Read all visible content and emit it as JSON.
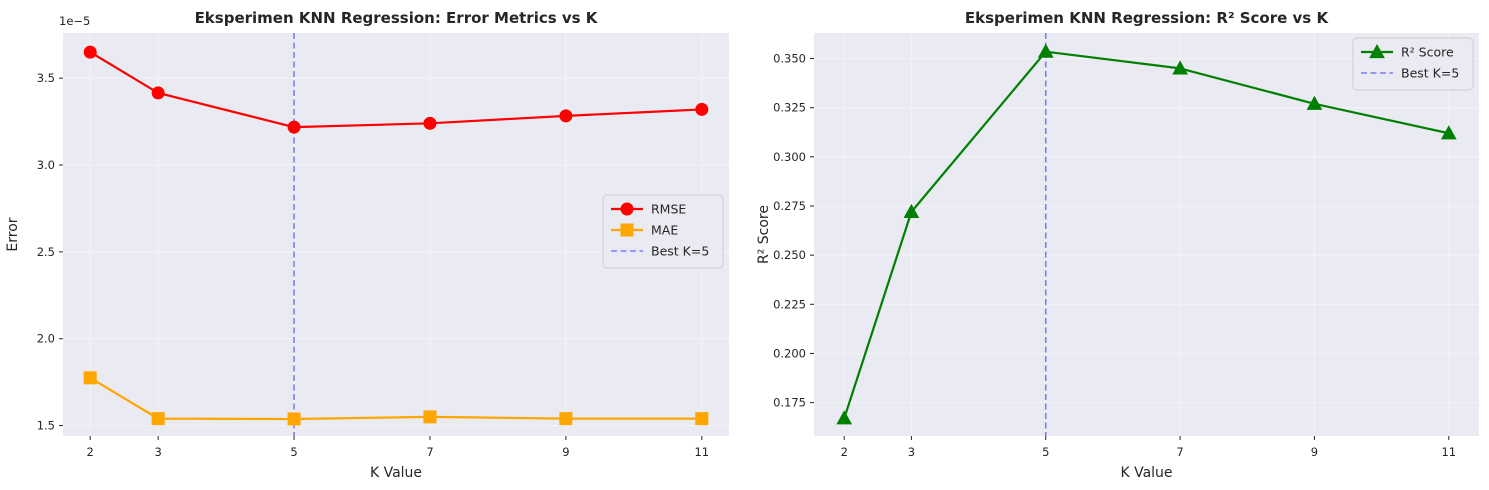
{
  "chart_data": [
    {
      "type": "line",
      "title": "Eksperimen KNN Regression: Error Metrics vs K",
      "xlabel": "K Value",
      "ylabel": "Error",
      "offset_label": "1e−5",
      "x": [
        2,
        3,
        5,
        7,
        9,
        11
      ],
      "xticks": [
        2,
        3,
        5,
        7,
        9,
        11
      ],
      "xlim": [
        1.6,
        11.4
      ],
      "ylim": [
        1.44,
        3.76
      ],
      "yticks": [
        1.5,
        2.0,
        2.5,
        3.0,
        3.5
      ],
      "ytick_labels": [
        "1.5",
        "2.0",
        "2.5",
        "3.0",
        "3.5"
      ],
      "grid": true,
      "legend_position": "center-right",
      "series": [
        {
          "name": "RMSE",
          "values": [
            3.65,
            3.415,
            3.218,
            3.24,
            3.283,
            3.32
          ],
          "color": "#ff0000",
          "marker": "circle"
        },
        {
          "name": "MAE",
          "values": [
            1.775,
            1.54,
            1.538,
            1.55,
            1.54,
            1.54
          ],
          "color": "#ffa500",
          "marker": "square"
        }
      ],
      "reference_line": {
        "name": "Best K=5",
        "x": 5,
        "color": "#6b6bf0",
        "style": "dashed"
      }
    },
    {
      "type": "line",
      "title": "Eksperimen KNN Regression: R² Score vs K",
      "xlabel": "K Value",
      "ylabel": "R² Score",
      "x": [
        2,
        3,
        5,
        7,
        9,
        11
      ],
      "xticks": [
        2,
        3,
        5,
        7,
        9,
        11
      ],
      "xlim": [
        1.55,
        11.45
      ],
      "ylim": [
        0.158,
        0.363
      ],
      "yticks": [
        0.175,
        0.2,
        0.225,
        0.25,
        0.275,
        0.3,
        0.325,
        0.35
      ],
      "ytick_labels": [
        "0.175",
        "0.200",
        "0.225",
        "0.250",
        "0.275",
        "0.300",
        "0.325",
        "0.350"
      ],
      "grid": true,
      "legend_position": "top-right",
      "series": [
        {
          "name": "R² Score",
          "values": [
            0.167,
            0.272,
            0.3535,
            0.345,
            0.327,
            0.312
          ],
          "color": "#008000",
          "marker": "triangle"
        }
      ],
      "reference_line": {
        "name": "Best K=5",
        "x": 5,
        "color": "#6b6bf0",
        "style": "dashed"
      }
    }
  ]
}
